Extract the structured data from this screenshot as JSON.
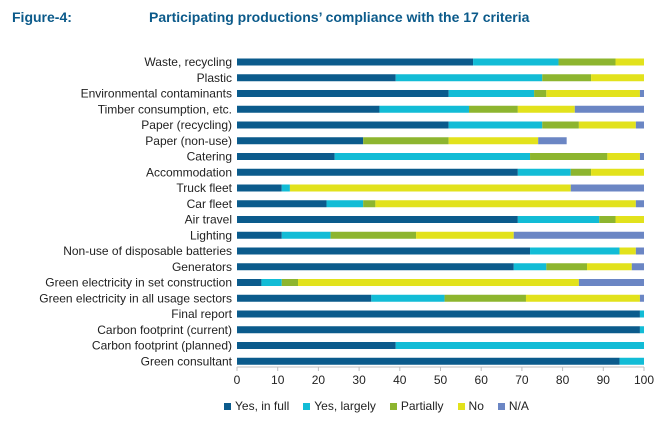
{
  "figure_label": "Figure-4:",
  "title": "Participating productions’ compliance with the 17 criteria",
  "chart_data": {
    "type": "bar",
    "orientation": "horizontal",
    "stacked": true,
    "title": "Participating productions’ compliance with the 17 criteria",
    "xlim": [
      0,
      100
    ],
    "xticks": [
      "0",
      "10",
      "20",
      "30",
      "40",
      "50",
      "60",
      "70",
      "80",
      "90",
      "100"
    ],
    "grid": false,
    "legend_position": "bottom",
    "categories": [
      "Waste, recycling",
      "Plastic",
      "Environmental contaminants",
      "Timber consumption, etc.",
      "Paper (recycling)",
      "Paper (non-use)",
      "Catering",
      "Accommodation",
      "Truck fleet",
      "Car fleet",
      "Air travel",
      "Lighting",
      "Non-use of disposable batteries",
      "Generators",
      "Green electricity in set construction",
      "Green electricity in all usage sectors",
      "Final report",
      "Carbon footprint (current)",
      "Carbon footprint (planned)",
      "Green consultant"
    ],
    "series": [
      {
        "name": "Yes, in full",
        "color": "#0b5b8c",
        "values": [
          58,
          39,
          52,
          35,
          52,
          31,
          24,
          69,
          11,
          22,
          69,
          11,
          72,
          68,
          6,
          33,
          99,
          99,
          39,
          94
        ]
      },
      {
        "name": "Yes, largely",
        "color": "#12bcd6",
        "values": [
          21,
          36,
          21,
          22,
          23,
          0,
          48,
          13,
          2,
          9,
          20,
          12,
          22,
          8,
          5,
          18,
          1,
          1,
          61,
          6
        ]
      },
      {
        "name": "Partially",
        "color": "#8db52f",
        "values": [
          14,
          12,
          3,
          12,
          9,
          21,
          19,
          5,
          0,
          3,
          4,
          21,
          0,
          10,
          4,
          20,
          0,
          0,
          0,
          0
        ]
      },
      {
        "name": "No",
        "color": "#e2e21c",
        "values": [
          7,
          13,
          23,
          14,
          14,
          22,
          8,
          13,
          69,
          64,
          7,
          24,
          4,
          11,
          69,
          28,
          0,
          0,
          0,
          0
        ]
      },
      {
        "name": "N/A",
        "color": "#6b86c4",
        "values": [
          0,
          0,
          1,
          17,
          2,
          7,
          1,
          0,
          18,
          2,
          0,
          32,
          2,
          3,
          16,
          1,
          0,
          0,
          0,
          0
        ]
      }
    ]
  }
}
